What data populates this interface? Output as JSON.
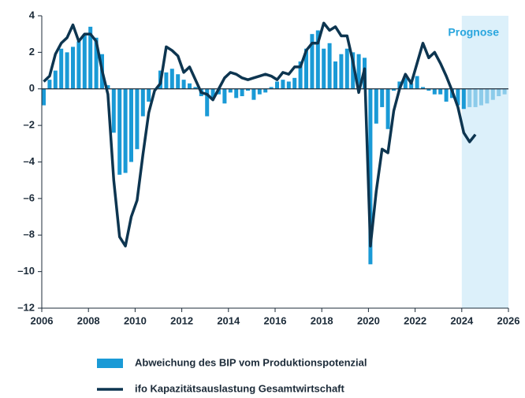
{
  "chart_data": {
    "type": "bar+line",
    "xlim": [
      2006,
      2026
    ],
    "xticks": [
      2006,
      2008,
      2010,
      2012,
      2014,
      2016,
      2018,
      2020,
      2022,
      2024,
      2026
    ],
    "ylim": [
      -12,
      4
    ],
    "yticks": [
      {
        "value": 4,
        "label": "4"
      },
      {
        "value": 2,
        "label": "2"
      },
      {
        "value": 0,
        "label": "0"
      },
      {
        "value": -2,
        "label": "–2"
      },
      {
        "value": -4,
        "label": "–4"
      },
      {
        "value": -6,
        "label": "–6"
      },
      {
        "value": -8,
        "label": "–8"
      },
      {
        "value": -10,
        "label": "–10"
      },
      {
        "value": -12,
        "label": "–12"
      }
    ],
    "forecast": {
      "label": "Prognose",
      "xlim": [
        2024,
        2026
      ],
      "color": "#dcf0fa",
      "bar_color": "#8ccbea",
      "label_color": "#2aa6de"
    },
    "series": [
      {
        "name": "Abweichung des BIP vom Produktionspotenzial",
        "type": "bar",
        "color": "#1a9ad6",
        "x": [
          2006,
          2006.25,
          2006.5,
          2006.75,
          2007,
          2007.25,
          2007.5,
          2007.75,
          2008,
          2008.25,
          2008.5,
          2008.75,
          2009,
          2009.25,
          2009.5,
          2009.75,
          2010,
          2010.25,
          2010.5,
          2010.75,
          2011,
          2011.25,
          2011.5,
          2011.75,
          2012,
          2012.25,
          2012.5,
          2012.75,
          2013,
          2013.25,
          2013.5,
          2013.75,
          2014,
          2014.25,
          2014.5,
          2014.75,
          2015,
          2015.25,
          2015.5,
          2015.75,
          2016,
          2016.25,
          2016.5,
          2016.75,
          2017,
          2017.25,
          2017.5,
          2017.75,
          2018,
          2018.25,
          2018.5,
          2018.75,
          2019,
          2019.25,
          2019.5,
          2019.75,
          2020,
          2020.25,
          2020.5,
          2020.75,
          2021,
          2021.25,
          2021.5,
          2021.75,
          2022,
          2022.25,
          2022.5,
          2022.75,
          2023,
          2023.25,
          2023.5,
          2023.75,
          2024,
          2024.25,
          2024.5,
          2024.75,
          2025,
          2025.25,
          2025.5,
          2025.75
        ],
        "values": [
          -0.9,
          0.5,
          1.0,
          2.2,
          2.0,
          2.3,
          2.6,
          3.0,
          3.4,
          2.8,
          1.9,
          0.2,
          -2.4,
          -4.7,
          -4.6,
          -4.0,
          -3.3,
          -1.5,
          -0.7,
          0.0,
          1.0,
          0.9,
          1.1,
          0.8,
          0.5,
          0.3,
          0.1,
          -0.4,
          -1.5,
          -0.5,
          -0.3,
          -0.8,
          -0.2,
          -0.5,
          -0.4,
          -0.1,
          -0.6,
          -0.3,
          -0.2,
          0.1,
          0.4,
          0.5,
          0.4,
          0.6,
          1.5,
          2.2,
          3.0,
          3.2,
          2.2,
          2.5,
          1.5,
          1.9,
          2.2,
          2.0,
          1.9,
          1.7,
          -9.6,
          -1.9,
          -1.0,
          -2.2,
          -0.1,
          0.4,
          0.6,
          0.3,
          0.7,
          0.1,
          -0.1,
          -0.3,
          -0.3,
          -0.7,
          -0.5,
          -0.9,
          -1.1,
          -1.0,
          -1.0,
          -0.9,
          -0.8,
          -0.6,
          -0.4,
          -0.3
        ]
      },
      {
        "name": "ifo Kapazitätsauslastung Gesamtwirtschaft",
        "type": "line",
        "color": "#0d3550",
        "x": [
          2006,
          2006.25,
          2006.5,
          2006.75,
          2007,
          2007.25,
          2007.5,
          2007.75,
          2008,
          2008.25,
          2008.5,
          2008.75,
          2009,
          2009.25,
          2009.5,
          2009.75,
          2010,
          2010.25,
          2010.5,
          2010.75,
          2011,
          2011.25,
          2011.5,
          2011.75,
          2012,
          2012.25,
          2012.5,
          2012.75,
          2013,
          2013.25,
          2013.5,
          2013.75,
          2014,
          2014.25,
          2014.5,
          2014.75,
          2015,
          2015.25,
          2015.5,
          2015.75,
          2016,
          2016.25,
          2016.5,
          2016.75,
          2017,
          2017.25,
          2017.5,
          2017.75,
          2018,
          2018.25,
          2018.5,
          2018.75,
          2019,
          2019.25,
          2019.5,
          2019.75,
          2020,
          2020.25,
          2020.5,
          2020.75,
          2021,
          2021.25,
          2021.5,
          2021.75,
          2022,
          2022.25,
          2022.5,
          2022.75,
          2023,
          2023.25,
          2023.5,
          2023.75,
          2024,
          2024.25,
          2024.5
        ],
        "values": [
          0.4,
          0.7,
          1.9,
          2.5,
          2.8,
          3.5,
          2.6,
          3.0,
          3.0,
          2.6,
          1.0,
          -0.3,
          -5.0,
          -8.1,
          -8.6,
          -7.0,
          -6.1,
          -3.6,
          -1.3,
          -0.1,
          0.3,
          2.3,
          2.1,
          1.8,
          0.9,
          1.2,
          0.5,
          -0.2,
          -0.3,
          -0.6,
          0.0,
          0.6,
          0.9,
          0.8,
          0.6,
          0.5,
          0.6,
          0.7,
          0.8,
          0.7,
          0.5,
          0.9,
          0.8,
          1.2,
          1.2,
          2.1,
          2.5,
          2.5,
          3.6,
          3.2,
          3.4,
          2.9,
          2.9,
          1.5,
          -0.2,
          1.1,
          -8.6,
          -5.6,
          -3.3,
          -3.5,
          -1.2,
          0.0,
          0.8,
          0.3,
          1.4,
          2.5,
          1.7,
          2.0,
          1.4,
          0.7,
          -0.1,
          -1.0,
          -2.4,
          -2.9,
          -2.5
        ]
      }
    ]
  }
}
